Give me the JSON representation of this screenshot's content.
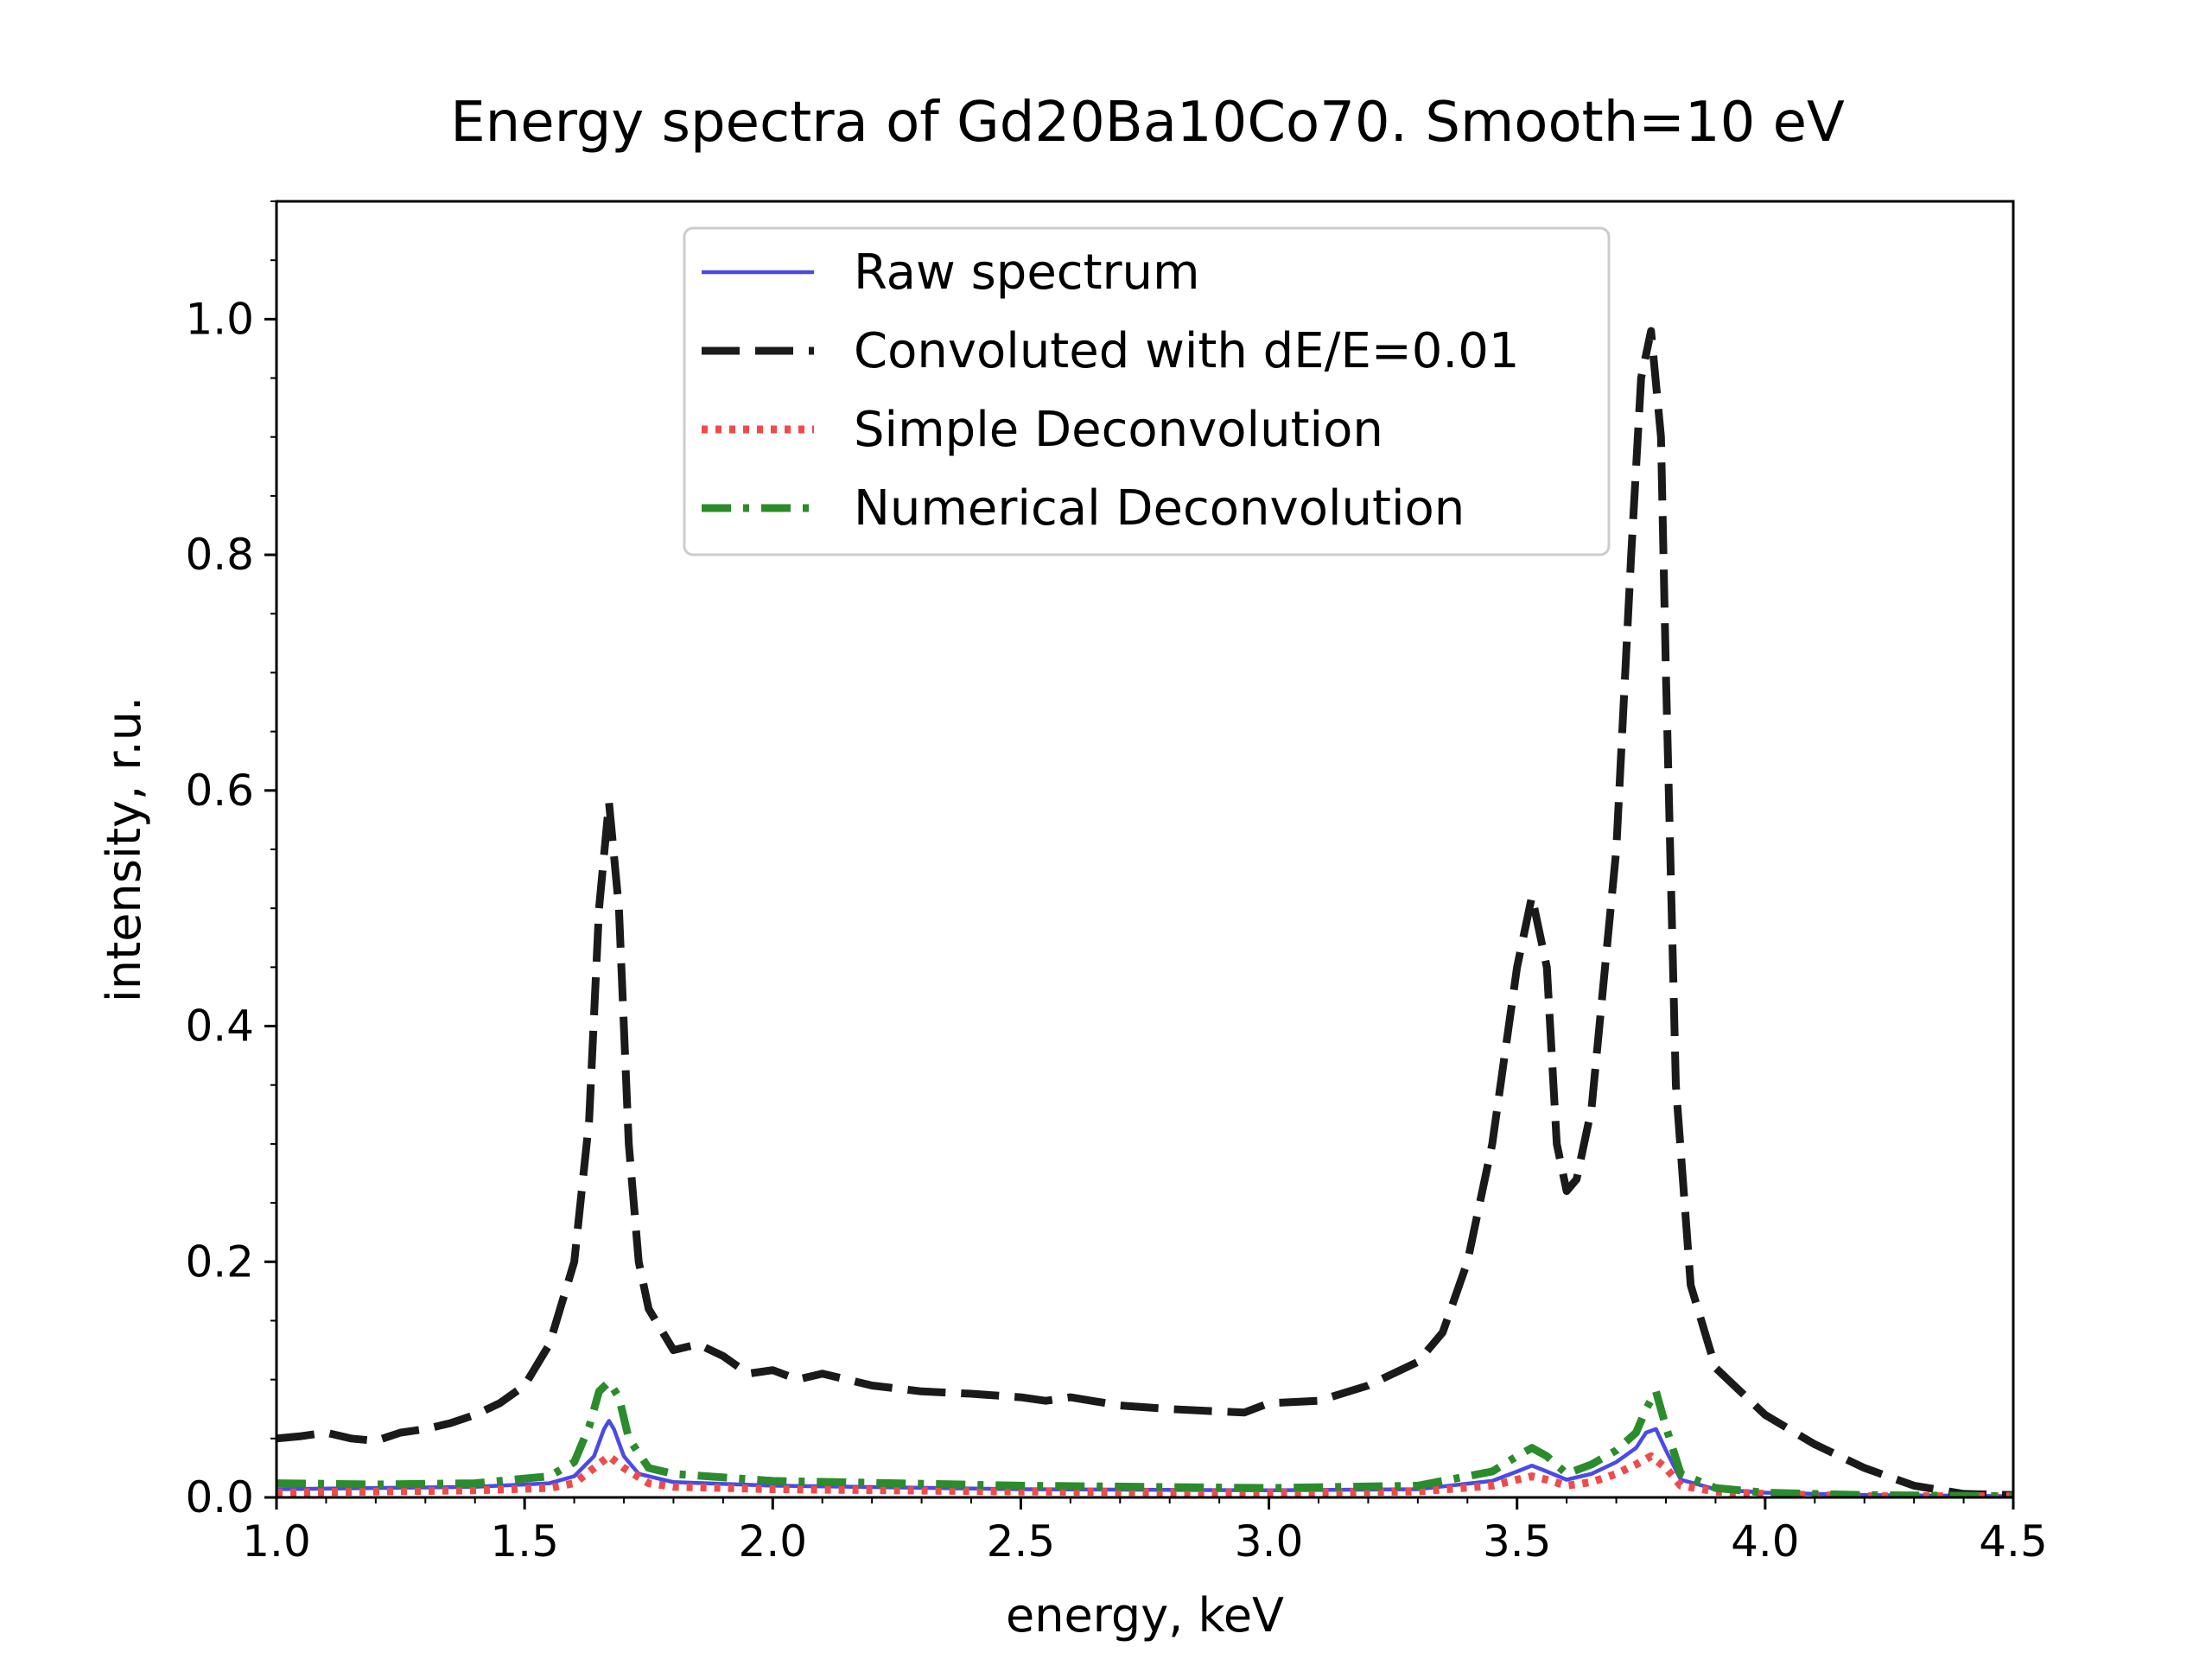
{
  "chart_data": {
    "type": "line",
    "title": "Energy spectra of Gd20Ba10Co70. Smooth=10 eV",
    "xlabel": "energy, keV",
    "ylabel": "intensity, r.u.",
    "xlim": [
      1.0,
      4.5
    ],
    "ylim": [
      0.0,
      1.1
    ],
    "x_ticks": [
      1.0,
      1.5,
      2.0,
      2.5,
      3.0,
      3.5,
      4.0,
      4.5
    ],
    "x_tick_labels": [
      "1.0",
      "1.5",
      "2.0",
      "2.5",
      "3.0",
      "3.5",
      "4.0",
      "4.5"
    ],
    "y_ticks": [
      0.0,
      0.2,
      0.4,
      0.6,
      0.8,
      1.0
    ],
    "y_tick_labels": [
      "0.0",
      "0.2",
      "0.4",
      "0.6",
      "0.8",
      "1.0"
    ],
    "grid": false,
    "legend_position": "upper-center",
    "series": [
      {
        "name": "Raw spectrum",
        "color": "#4a4ae8",
        "style": "solid",
        "x": [
          1.0,
          1.2,
          1.4,
          1.55,
          1.6,
          1.64,
          1.66,
          1.67,
          1.68,
          1.7,
          1.73,
          1.8,
          2.0,
          2.5,
          3.0,
          3.3,
          3.45,
          3.5,
          3.53,
          3.56,
          3.6,
          3.65,
          3.7,
          3.74,
          3.76,
          3.78,
          3.8,
          3.83,
          3.9,
          4.0,
          4.2,
          4.5
        ],
        "y": [
          0.007,
          0.008,
          0.009,
          0.012,
          0.018,
          0.035,
          0.058,
          0.065,
          0.058,
          0.035,
          0.02,
          0.013,
          0.01,
          0.007,
          0.006,
          0.007,
          0.014,
          0.022,
          0.027,
          0.022,
          0.015,
          0.02,
          0.03,
          0.042,
          0.055,
          0.058,
          0.04,
          0.015,
          0.007,
          0.004,
          0.002,
          0.001
        ]
      },
      {
        "name": "Convoluted with dE/E=0.01",
        "color": "#1a1a1a",
        "style": "dashed",
        "x": [
          1.0,
          1.05,
          1.1,
          1.15,
          1.2,
          1.25,
          1.3,
          1.35,
          1.4,
          1.45,
          1.5,
          1.55,
          1.6,
          1.63,
          1.65,
          1.67,
          1.69,
          1.71,
          1.73,
          1.75,
          1.8,
          1.85,
          1.9,
          1.95,
          2.0,
          2.05,
          2.1,
          2.15,
          2.2,
          2.3,
          2.4,
          2.5,
          2.55,
          2.6,
          2.7,
          2.8,
          2.9,
          2.95,
          3.0,
          3.1,
          3.2,
          3.3,
          3.35,
          3.4,
          3.45,
          3.5,
          3.53,
          3.56,
          3.58,
          3.6,
          3.62,
          3.65,
          3.7,
          3.73,
          3.75,
          3.77,
          3.79,
          3.8,
          3.82,
          3.85,
          3.9,
          4.0,
          4.1,
          4.2,
          4.3,
          4.4,
          4.5
        ],
        "y": [
          0.05,
          0.052,
          0.055,
          0.05,
          0.048,
          0.055,
          0.058,
          0.063,
          0.07,
          0.08,
          0.095,
          0.13,
          0.2,
          0.32,
          0.5,
          0.59,
          0.5,
          0.3,
          0.2,
          0.16,
          0.125,
          0.13,
          0.12,
          0.105,
          0.108,
          0.1,
          0.105,
          0.1,
          0.095,
          0.09,
          0.088,
          0.085,
          0.082,
          0.085,
          0.078,
          0.075,
          0.073,
          0.072,
          0.08,
          0.082,
          0.095,
          0.115,
          0.14,
          0.2,
          0.3,
          0.45,
          0.51,
          0.45,
          0.3,
          0.26,
          0.27,
          0.33,
          0.55,
          0.8,
          0.95,
          0.99,
          0.9,
          0.7,
          0.35,
          0.18,
          0.11,
          0.07,
          0.045,
          0.025,
          0.01,
          0.003,
          0.002
        ]
      },
      {
        "name": "Simple Deconvolution",
        "color": "#f04a4a",
        "style": "dotted",
        "x": [
          1.0,
          1.2,
          1.4,
          1.55,
          1.6,
          1.64,
          1.67,
          1.7,
          1.75,
          1.8,
          2.0,
          2.5,
          3.0,
          3.3,
          3.45,
          3.5,
          3.53,
          3.56,
          3.6,
          3.65,
          3.7,
          3.74,
          3.77,
          3.8,
          3.83,
          3.9,
          4.0,
          4.2,
          4.5
        ],
        "y": [
          0.004,
          0.005,
          0.006,
          0.008,
          0.012,
          0.025,
          0.035,
          0.025,
          0.012,
          0.009,
          0.007,
          0.005,
          0.004,
          0.005,
          0.01,
          0.015,
          0.018,
          0.015,
          0.01,
          0.013,
          0.02,
          0.028,
          0.035,
          0.025,
          0.01,
          0.005,
          0.003,
          0.001,
          0.001
        ]
      },
      {
        "name": "Numerical Deconvolution",
        "color": "#2a8c2a",
        "style": "dashdot",
        "x": [
          1.0,
          1.2,
          1.4,
          1.55,
          1.6,
          1.63,
          1.65,
          1.67,
          1.69,
          1.71,
          1.75,
          1.8,
          2.0,
          2.5,
          3.0,
          3.3,
          3.45,
          3.5,
          3.53,
          3.56,
          3.6,
          3.65,
          3.7,
          3.74,
          3.76,
          3.78,
          3.8,
          3.83,
          3.9,
          4.0,
          4.2,
          4.5
        ],
        "y": [
          0.012,
          0.011,
          0.012,
          0.018,
          0.03,
          0.06,
          0.09,
          0.098,
          0.085,
          0.05,
          0.025,
          0.02,
          0.014,
          0.01,
          0.008,
          0.01,
          0.022,
          0.035,
          0.042,
          0.035,
          0.02,
          0.028,
          0.04,
          0.055,
          0.075,
          0.09,
          0.06,
          0.02,
          0.008,
          0.004,
          0.002,
          0.001
        ]
      }
    ]
  }
}
